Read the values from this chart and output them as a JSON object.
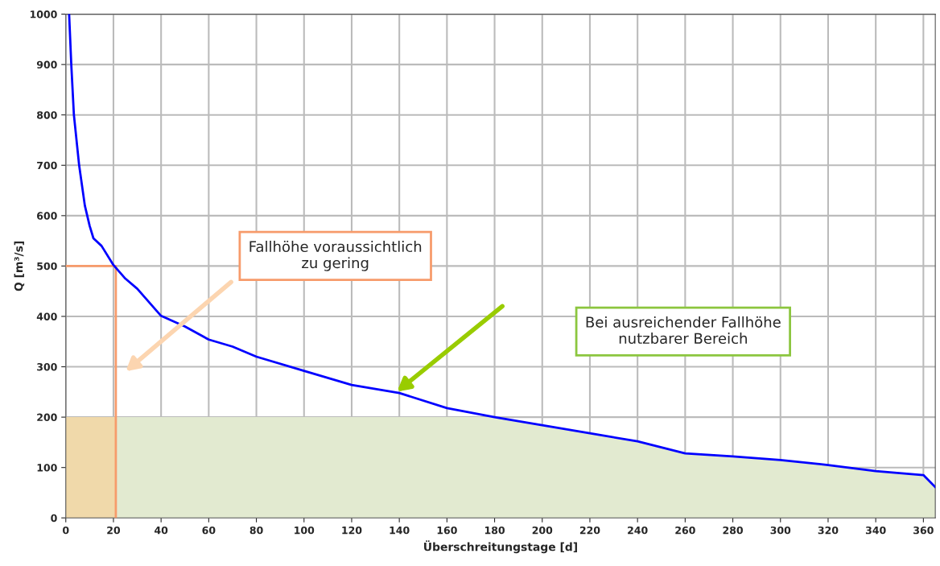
{
  "chart_data": {
    "type": "line",
    "xlabel": "Überschreitungstage [d]",
    "ylabel": "Q [m³/s]",
    "xlim": [
      0,
      365
    ],
    "ylim": [
      0,
      1000
    ],
    "xticks": [
      0,
      20,
      40,
      60,
      80,
      100,
      120,
      140,
      160,
      180,
      200,
      220,
      240,
      260,
      280,
      300,
      320,
      340,
      360
    ],
    "yticks": [
      0,
      100,
      200,
      300,
      400,
      500,
      600,
      700,
      800,
      900,
      1000
    ],
    "grid": true,
    "series": [
      {
        "type": "area",
        "color": "#e2ead0",
        "x": [
          21,
          21,
          160,
          175,
          180,
          200,
          220,
          240,
          260,
          280,
          300,
          320,
          340,
          360,
          365
        ],
        "values": [
          0,
          200,
          200,
          200,
          200,
          184,
          168,
          152,
          128,
          122,
          115,
          105,
          93,
          85,
          61
        ]
      },
      {
        "type": "area",
        "color": "#f0d9aa",
        "x": [
          0,
          21
        ],
        "values": [
          200,
          200
        ]
      },
      {
        "type": "line",
        "color": "#f79b6b",
        "x": [
          0,
          21,
          21
        ],
        "values": [
          500,
          500,
          0
        ]
      },
      {
        "color": "#0000ff",
        "x": [
          1.4,
          2.3,
          3.4,
          5.6,
          8,
          10,
          11.6,
          15,
          20,
          25,
          30,
          40,
          50,
          60,
          70,
          80,
          100,
          120,
          140,
          160,
          180,
          200,
          220,
          240,
          260,
          280,
          300,
          320,
          340,
          360,
          365
        ],
        "values": [
          1000,
          900,
          800,
          700,
          620,
          580,
          555,
          540,
          502,
          475,
          455,
          401,
          380,
          354,
          340,
          320,
          292,
          264,
          248,
          218,
          200,
          184,
          168,
          152,
          128,
          122,
          115,
          105,
          93,
          85,
          61
        ]
      }
    ],
    "annotations": [
      "Fallhöhe voraussichtlich\nzu gering",
      "Bei ausreichender Fallhöhe\nnutzbarer Bereich"
    ]
  }
}
